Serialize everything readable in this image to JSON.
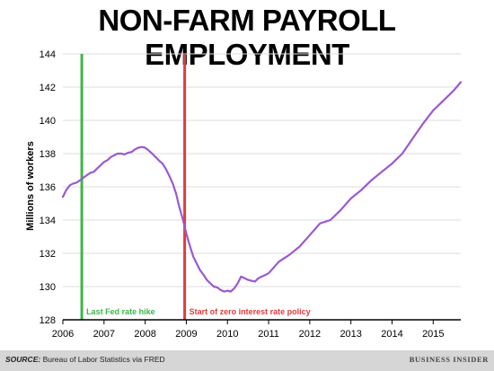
{
  "header": {
    "title": "NON-FARM PAYROLL EMPLOYMENT"
  },
  "footer": {
    "source_label": "SOURCE:",
    "source_text": "Bureau of Labor Statistics via FRED",
    "brand": "BUSINESS INSIDER"
  },
  "colors": {
    "series": "#9b59d0",
    "fed_hike": "#3db54a",
    "zero_rate": "#e03c3c",
    "grid": "#dddddd",
    "axis": "#000000"
  },
  "chart_data": {
    "type": "line",
    "title": "NON-FARM PAYROLL EMPLOYMENT",
    "ylabel": "Millions of workers",
    "xlabel": "",
    "xlim": [
      2006.0,
      2015.67
    ],
    "ylim": [
      128,
      144
    ],
    "x_ticks": [
      "2006",
      "2007",
      "2008",
      "2009",
      "2010",
      "2011",
      "2012",
      "2013",
      "2014",
      "2015"
    ],
    "y_ticks": [
      "128",
      "130",
      "132",
      "134",
      "136",
      "138",
      "140",
      "142",
      "144"
    ],
    "grid": "horizontal",
    "series": [
      {
        "x": [
          2006.0,
          2006.08,
          2006.17,
          2006.25,
          2006.33,
          2006.42,
          2006.5,
          2006.58,
          2006.67,
          2006.75,
          2006.83,
          2006.92,
          2007.0,
          2007.08,
          2007.17,
          2007.25,
          2007.33,
          2007.42,
          2007.5,
          2007.58,
          2007.67,
          2007.75,
          2007.83,
          2007.92,
          2008.0,
          2008.08,
          2008.17,
          2008.25,
          2008.33,
          2008.42,
          2008.5,
          2008.58,
          2008.67,
          2008.75,
          2008.83,
          2008.92,
          2009.0,
          2009.08,
          2009.17,
          2009.25,
          2009.33,
          2009.42,
          2009.5,
          2009.58,
          2009.67,
          2009.75,
          2009.83,
          2009.92,
          2010.0,
          2010.08,
          2010.17,
          2010.25,
          2010.33,
          2010.42,
          2010.5,
          2010.58,
          2010.67,
          2010.75,
          2010.83,
          2010.92,
          2011.0,
          2011.25,
          2011.5,
          2011.75,
          2012.0,
          2012.25,
          2012.5,
          2012.75,
          2013.0,
          2013.25,
          2013.5,
          2013.75,
          2014.0,
          2014.25,
          2014.5,
          2014.75,
          2015.0,
          2015.25,
          2015.5,
          2015.67
        ],
        "y": [
          135.4,
          135.8,
          136.1,
          136.2,
          136.25,
          136.4,
          136.55,
          136.7,
          136.85,
          136.9,
          137.1,
          137.3,
          137.5,
          137.6,
          137.8,
          137.9,
          138.0,
          138.0,
          137.95,
          138.05,
          138.1,
          138.25,
          138.35,
          138.4,
          138.35,
          138.2,
          138.0,
          137.8,
          137.6,
          137.4,
          137.1,
          136.7,
          136.2,
          135.6,
          134.8,
          134.0,
          133.2,
          132.5,
          131.8,
          131.4,
          131.0,
          130.7,
          130.4,
          130.2,
          130.0,
          129.95,
          129.8,
          129.7,
          129.75,
          129.7,
          129.9,
          130.2,
          130.6,
          130.5,
          130.4,
          130.35,
          130.3,
          130.5,
          130.6,
          130.7,
          130.8,
          131.5,
          131.9,
          132.4,
          133.1,
          133.8,
          134.0,
          134.6,
          135.3,
          135.8,
          136.4,
          136.9,
          137.4,
          138.0,
          138.9,
          139.8,
          140.6,
          141.2,
          141.8,
          142.3
        ]
      }
    ],
    "annotations": [
      {
        "x": 2006.46,
        "label": "Last Fed rate hike",
        "color": "#3db54a"
      },
      {
        "x": 2008.96,
        "label": "Start of zero interest rate policy",
        "color": "#e03c3c"
      }
    ]
  }
}
